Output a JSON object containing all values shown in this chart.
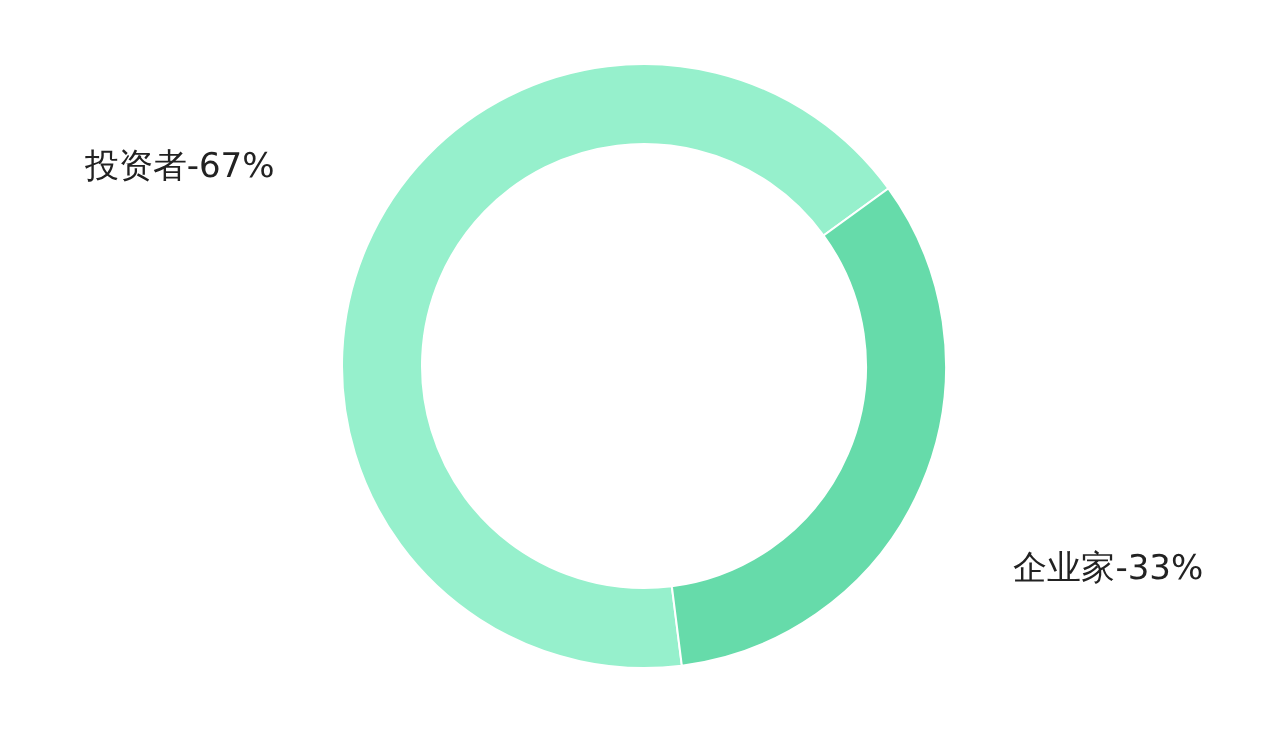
{
  "chart_data": {
    "type": "donut",
    "categories": [
      "投资者-",
      "企业家-"
    ],
    "values": [
      67,
      33
    ],
    "colors": [
      "#96f0cc",
      "#66dbaa"
    ],
    "value_labels": [
      "67%",
      "33%"
    ],
    "legend": false
  }
}
